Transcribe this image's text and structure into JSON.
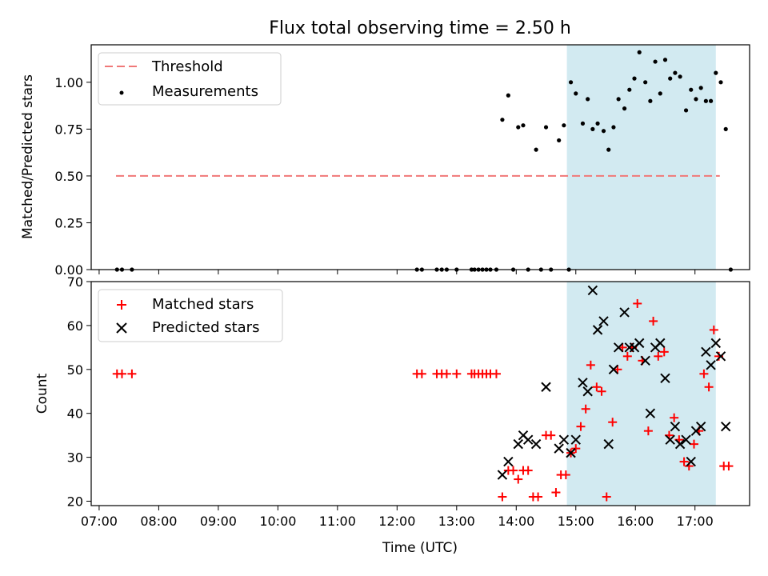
{
  "figure_title": "Flux total observing time = 2.50 h",
  "colors": {
    "threshold": "#f07878",
    "measurement": "#000000",
    "matched": "#ff0000",
    "predicted": "#000000",
    "highlight": "#add8e6"
  },
  "chart_data": [
    {
      "type": "scatter",
      "title": "Flux total observing time = 2.50 h",
      "xlabel": "",
      "ylabel": "Matched/Predicted stars",
      "xlim": [
        "06:52",
        "17:55"
      ],
      "ylim": [
        0,
        1.2
      ],
      "y_ticks": [
        "0.00",
        "0.25",
        "0.50",
        "0.75",
        "1.00"
      ],
      "y_tick_values": [
        0,
        0.25,
        0.5,
        0.75,
        1.0
      ],
      "grid": false,
      "legend_position": "top-left",
      "highlight_span": [
        "14:51",
        "17:21"
      ],
      "threshold": {
        "name": "Threshold",
        "value": 0.5,
        "x_range": [
          "07:17",
          "17:25"
        ],
        "style": "dashed"
      },
      "series": [
        {
          "name": "Measurements",
          "points": [
            [
              "07:18",
              0
            ],
            [
              "07:23",
              0
            ],
            [
              "07:33",
              0
            ],
            [
              "12:20",
              0
            ],
            [
              "12:25",
              0
            ],
            [
              "12:40",
              0
            ],
            [
              "12:45",
              0
            ],
            [
              "12:50",
              0
            ],
            [
              "13:00",
              0
            ],
            [
              "13:15",
              0
            ],
            [
              "13:18",
              0
            ],
            [
              "13:22",
              0
            ],
            [
              "13:26",
              0
            ],
            [
              "13:30",
              0
            ],
            [
              "13:34",
              0
            ],
            [
              "13:40",
              0
            ],
            [
              "13:46",
              0.8
            ],
            [
              "13:52",
              0.93
            ],
            [
              "13:57",
              0
            ],
            [
              "14:02",
              0.76
            ],
            [
              "14:07",
              0.77
            ],
            [
              "14:12",
              0
            ],
            [
              "14:20",
              0.64
            ],
            [
              "14:25",
              0
            ],
            [
              "14:30",
              0.76
            ],
            [
              "14:35",
              0
            ],
            [
              "14:43",
              0.69
            ],
            [
              "14:48",
              0.77
            ],
            [
              "14:53",
              0
            ],
            [
              "14:55",
              1.0
            ],
            [
              "15:00",
              0.94
            ],
            [
              "15:07",
              0.78
            ],
            [
              "15:12",
              0.91
            ],
            [
              "15:17",
              0.75
            ],
            [
              "15:22",
              0.78
            ],
            [
              "15:28",
              0.74
            ],
            [
              "15:33",
              0.64
            ],
            [
              "15:38",
              0.76
            ],
            [
              "15:43",
              0.91
            ],
            [
              "15:49",
              0.86
            ],
            [
              "15:54",
              0.96
            ],
            [
              "15:59",
              1.02
            ],
            [
              "16:04",
              1.16
            ],
            [
              "16:10",
              1.0
            ],
            [
              "16:15",
              0.9
            ],
            [
              "16:20",
              1.11
            ],
            [
              "16:25",
              0.94
            ],
            [
              "16:30",
              1.12
            ],
            [
              "16:35",
              1.02
            ],
            [
              "16:40",
              1.05
            ],
            [
              "16:45",
              1.03
            ],
            [
              "16:51",
              0.85
            ],
            [
              "16:56",
              0.96
            ],
            [
              "17:01",
              0.91
            ],
            [
              "17:06",
              0.97
            ],
            [
              "17:11",
              0.9
            ],
            [
              "17:16",
              0.9
            ],
            [
              "17:21",
              1.05
            ],
            [
              "17:26",
              1.0
            ],
            [
              "17:31",
              0.75
            ],
            [
              "17:36",
              0
            ]
          ]
        }
      ]
    },
    {
      "type": "scatter",
      "title": "",
      "xlabel": "Time (UTC)",
      "ylabel": "Count",
      "xlim": [
        "06:52",
        "17:55"
      ],
      "ylim": [
        19,
        70
      ],
      "y_ticks": [
        "20",
        "30",
        "40",
        "50",
        "60",
        "70"
      ],
      "y_tick_values": [
        20,
        30,
        40,
        50,
        60,
        70
      ],
      "x_ticks": [
        "07:00",
        "08:00",
        "09:00",
        "10:00",
        "11:00",
        "12:00",
        "13:00",
        "14:00",
        "15:00",
        "16:00",
        "17:00"
      ],
      "grid": false,
      "legend_position": "top-left",
      "highlight_span": [
        "14:51",
        "17:21"
      ],
      "series": [
        {
          "name": "Matched stars",
          "marker": "plus",
          "points": [
            [
              "07:18",
              49
            ],
            [
              "07:23",
              49
            ],
            [
              "07:33",
              49
            ],
            [
              "12:20",
              49
            ],
            [
              "12:25",
              49
            ],
            [
              "12:40",
              49
            ],
            [
              "12:45",
              49
            ],
            [
              "12:50",
              49
            ],
            [
              "13:00",
              49
            ],
            [
              "13:15",
              49
            ],
            [
              "13:18",
              49
            ],
            [
              "13:22",
              49
            ],
            [
              "13:26",
              49
            ],
            [
              "13:30",
              49
            ],
            [
              "13:34",
              49
            ],
            [
              "13:40",
              49
            ],
            [
              "13:46",
              21
            ],
            [
              "13:52",
              27
            ],
            [
              "13:57",
              27
            ],
            [
              "14:02",
              25
            ],
            [
              "14:07",
              27
            ],
            [
              "14:12",
              27
            ],
            [
              "14:17",
              21
            ],
            [
              "14:22",
              21
            ],
            [
              "14:30",
              35
            ],
            [
              "14:35",
              35
            ],
            [
              "14:40",
              22
            ],
            [
              "14:45",
              26
            ],
            [
              "14:50",
              26
            ],
            [
              "14:55",
              31
            ],
            [
              "15:00",
              32
            ],
            [
              "15:05",
              37
            ],
            [
              "15:10",
              41
            ],
            [
              "15:15",
              51
            ],
            [
              "15:21",
              46
            ],
            [
              "15:26",
              45
            ],
            [
              "15:31",
              21
            ],
            [
              "15:37",
              38
            ],
            [
              "15:42",
              50
            ],
            [
              "15:47",
              55
            ],
            [
              "15:52",
              53
            ],
            [
              "15:57",
              55
            ],
            [
              "16:02",
              65
            ],
            [
              "16:07",
              52
            ],
            [
              "16:13",
              36
            ],
            [
              "16:18",
              61
            ],
            [
              "16:23",
              53
            ],
            [
              "16:29",
              54
            ],
            [
              "16:34",
              35
            ],
            [
              "16:39",
              39
            ],
            [
              "16:44",
              34
            ],
            [
              "16:49",
              29
            ],
            [
              "16:54",
              28
            ],
            [
              "16:59",
              33
            ],
            [
              "17:04",
              36
            ],
            [
              "17:09",
              49
            ],
            [
              "17:14",
              46
            ],
            [
              "17:19",
              59
            ],
            [
              "17:24",
              53
            ],
            [
              "17:29",
              28
            ],
            [
              "17:34",
              28
            ]
          ]
        },
        {
          "name": "Predicted stars",
          "marker": "x",
          "points": [
            [
              "13:46",
              26
            ],
            [
              "13:52",
              29
            ],
            [
              "14:02",
              33
            ],
            [
              "14:07",
              35
            ],
            [
              "14:12",
              34
            ],
            [
              "14:20",
              33
            ],
            [
              "14:30",
              46
            ],
            [
              "14:43",
              32
            ],
            [
              "14:48",
              34
            ],
            [
              "14:55",
              31
            ],
            [
              "15:00",
              34
            ],
            [
              "15:07",
              47
            ],
            [
              "15:12",
              45
            ],
            [
              "15:17",
              68
            ],
            [
              "15:22",
              59
            ],
            [
              "15:28",
              61
            ],
            [
              "15:33",
              33
            ],
            [
              "15:38",
              50
            ],
            [
              "15:43",
              55
            ],
            [
              "15:49",
              63
            ],
            [
              "15:54",
              55
            ],
            [
              "15:59",
              55
            ],
            [
              "16:04",
              56
            ],
            [
              "16:10",
              52
            ],
            [
              "16:15",
              40
            ],
            [
              "16:20",
              55
            ],
            [
              "16:25",
              56
            ],
            [
              "16:30",
              48
            ],
            [
              "16:35",
              34
            ],
            [
              "16:40",
              37
            ],
            [
              "16:45",
              33
            ],
            [
              "16:51",
              34
            ],
            [
              "16:56",
              29
            ],
            [
              "17:01",
              36
            ],
            [
              "17:06",
              37
            ],
            [
              "17:11",
              54
            ],
            [
              "17:16",
              51
            ],
            [
              "17:21",
              56
            ],
            [
              "17:26",
              53
            ],
            [
              "17:31",
              37
            ]
          ]
        }
      ]
    }
  ]
}
